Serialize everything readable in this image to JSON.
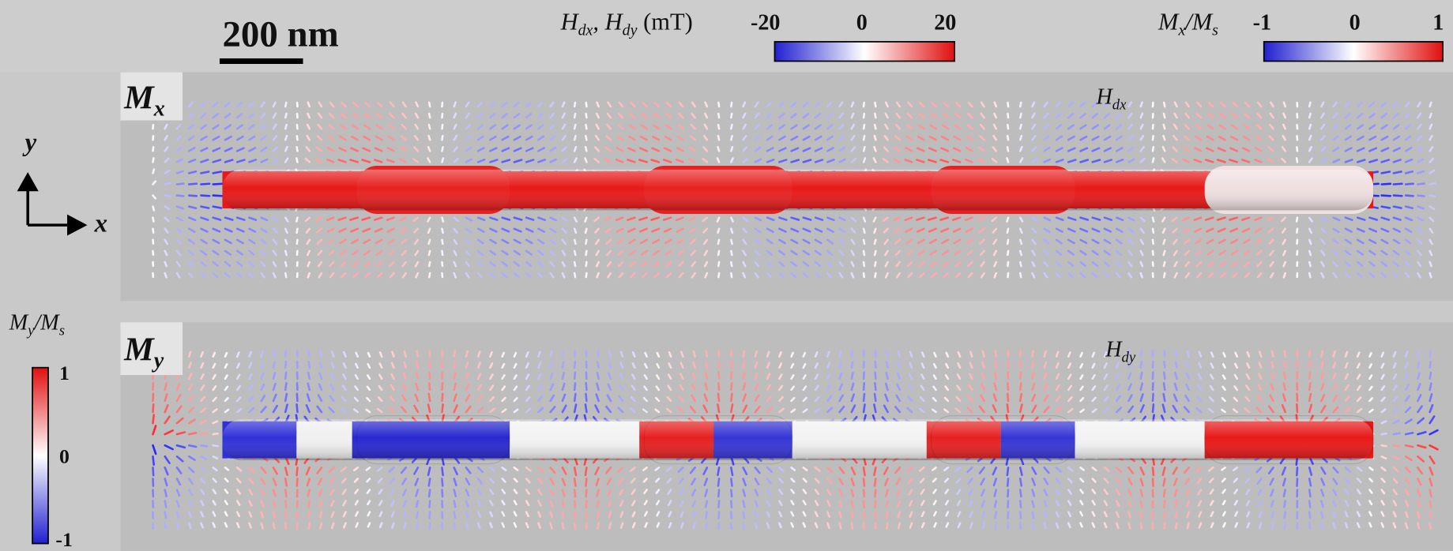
{
  "scale_bar": "200 nm",
  "field_colorbar": {
    "title": [
      "H",
      "dx",
      ", H",
      "dy",
      " (mT)"
    ],
    "ticks": [
      "-20",
      "0",
      "20"
    ]
  },
  "mx_colorbar": {
    "title": [
      "M",
      "x",
      "/M",
      "s"
    ],
    "ticks": [
      "-1",
      "0",
      "1"
    ]
  },
  "my_colorbar": {
    "title": [
      "M",
      "y",
      "/M",
      "s"
    ],
    "ticks": [
      "1",
      "0",
      "-1"
    ]
  },
  "axes": {
    "y": "y",
    "x": "x"
  },
  "panels": [
    {
      "label": [
        "M",
        "x"
      ],
      "field": [
        "H",
        "dx"
      ]
    },
    {
      "label": [
        "M",
        "y"
      ],
      "field": [
        "H",
        "dy"
      ]
    }
  ]
}
